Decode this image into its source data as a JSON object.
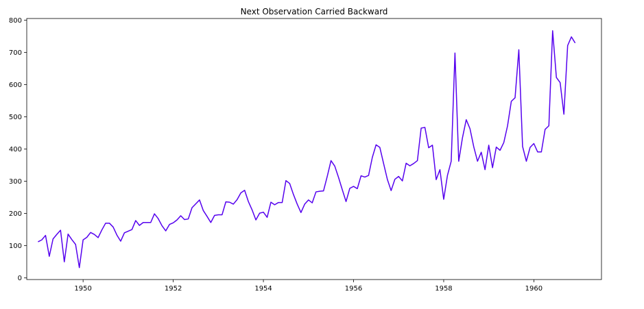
{
  "chart_data": {
    "type": "line",
    "title": "Next Observation Carried Backward",
    "xlabel": "",
    "ylabel": "",
    "xlim": [
      1948.75,
      1961.5
    ],
    "ylim": [
      -5,
      805
    ],
    "x_ticks": [
      1950,
      1952,
      1954,
      1956,
      1958,
      1960
    ],
    "x_tick_labels": [
      "1950",
      "1952",
      "1954",
      "1956",
      "1958",
      "1960"
    ],
    "y_ticks": [
      0,
      100,
      200,
      300,
      400,
      500,
      600,
      700,
      800
    ],
    "y_tick_labels": [
      "0",
      "100",
      "200",
      "300",
      "400",
      "500",
      "600",
      "700",
      "800"
    ],
    "grid": false,
    "legend": "none",
    "line_color": "#5500ee",
    "x_start": 1949.0,
    "x_step": 0.08333,
    "series": [
      {
        "values": [
          112,
          118,
          132,
          67,
          121,
          135,
          148,
          50,
          136,
          119,
          104,
          32,
          118,
          126,
          141,
          135,
          125,
          149,
          170,
          170,
          158,
          133,
          114,
          140,
          145,
          150,
          178,
          163,
          172,
          172,
          172,
          199,
          184,
          162,
          146,
          166,
          171,
          180,
          193,
          181,
          183,
          218,
          230,
          242,
          209,
          191,
          172,
          194,
          196,
          196,
          236,
          235,
          229,
          243,
          264,
          272,
          237,
          211,
          180,
          201,
          204,
          188,
          235,
          227,
          234,
          234,
          302,
          293,
          259,
          229,
          203,
          229,
          242,
          233,
          267,
          269,
          270,
          315,
          364,
          347,
          312,
          274,
          237,
          278,
          284,
          277,
          317,
          313,
          318,
          374,
          413,
          405,
          355,
          306,
          271,
          306,
          315,
          301,
          356,
          348,
          355,
          364,
          465,
          467,
          404,
          412,
          305,
          336,
          244,
          318,
          362,
          698,
          362,
          435,
          491,
          463,
          407,
          362,
          390,
          336,
          412,
          342,
          406,
          396,
          420,
          472,
          548,
          559,
          708,
          408,
          362,
          405,
          417,
          391,
          391,
          461,
          472,
          767,
          622,
          606,
          508,
          721,
          748,
          729
        ]
      }
    ]
  }
}
